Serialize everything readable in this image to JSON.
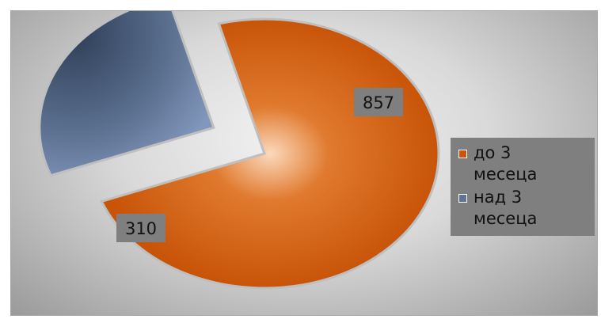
{
  "chart_data": {
    "type": "pie",
    "categories": [
      "до 3 месеца",
      "над 3 месеца"
    ],
    "values": [
      857,
      310
    ],
    "exploded": [
      false,
      true
    ],
    "data_labels": [
      "857",
      "310"
    ],
    "legend_position": "right",
    "colors": [
      "#c8560e",
      "#5f7393"
    ]
  }
}
